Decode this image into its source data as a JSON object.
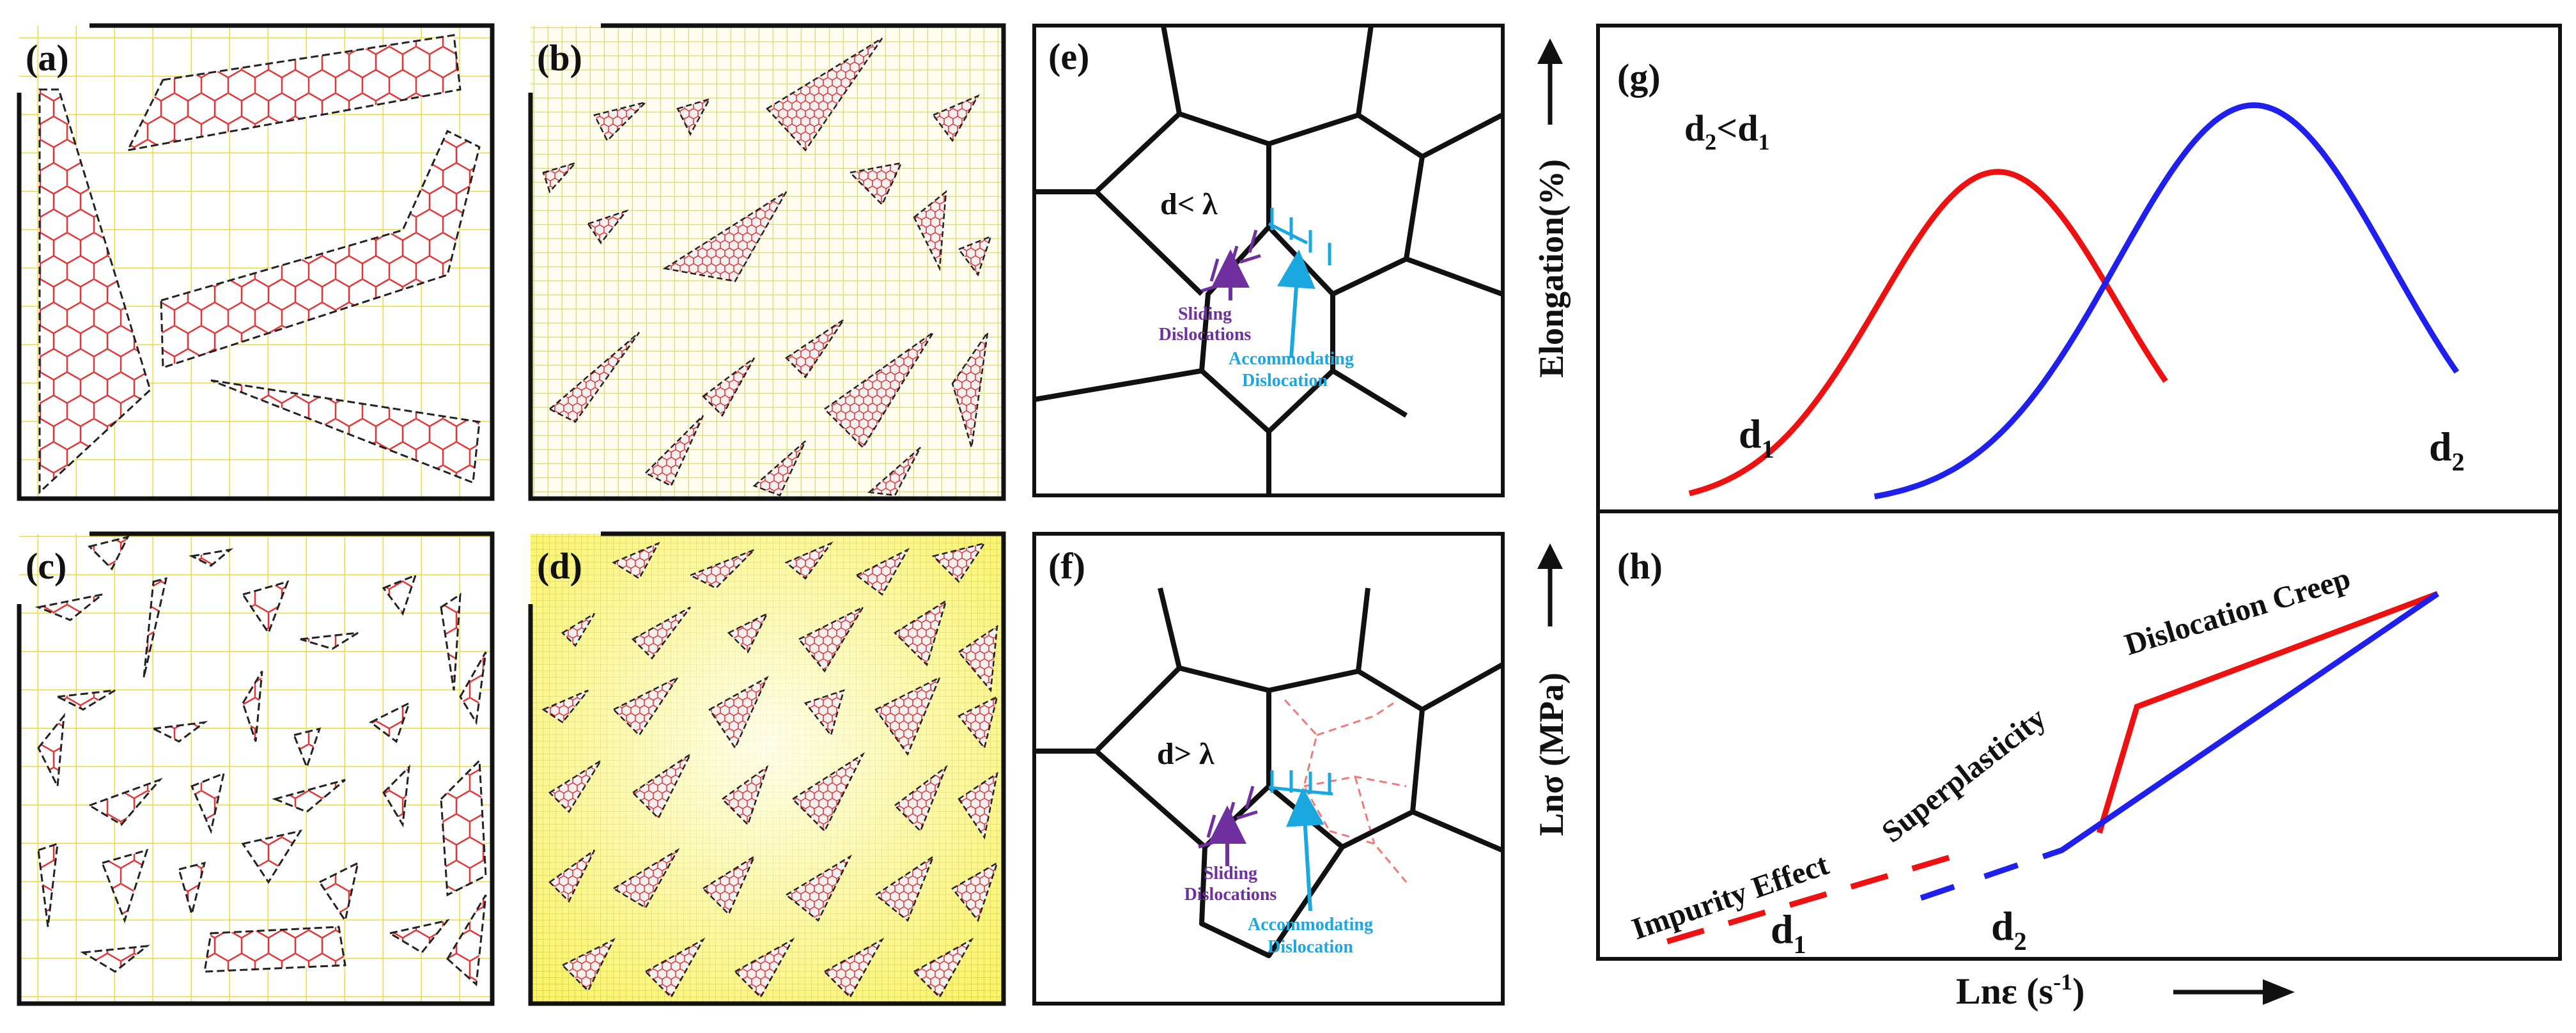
{
  "panels": {
    "a": {
      "label": "(a)"
    },
    "b": {
      "label": "(b)"
    },
    "c": {
      "label": "(c)"
    },
    "d": {
      "label": "(d)"
    },
    "e": {
      "label": "(e)",
      "condition": "d< λ",
      "sliding_label_1": "Sliding",
      "sliding_label_2": "Dislocations",
      "accommodating_label_1": "Accommodating",
      "accommodating_label_2": "Dislocation"
    },
    "f": {
      "label": "(f)",
      "condition": "d> λ",
      "sliding_label_1": "Sliding",
      "sliding_label_2": "Dislocations",
      "accommodating_label_1": "Accommodating",
      "accommodating_label_2": "Dislocation"
    },
    "g": {
      "label": "(g)",
      "relation_left": "d",
      "relation_left_sub": "2",
      "relation_mid": "<d",
      "relation_right_sub": "1",
      "y_axis_label": "Elongation(%)",
      "curve1_label": "d",
      "curve1_sub": "1",
      "curve2_label": "d",
      "curve2_sub": "2"
    },
    "h": {
      "label": "(h)",
      "y_axis_label": "Lnσ (MPa)",
      "x_axis_label": "Lnε (s",
      "x_axis_sup": "-1",
      "x_axis_close": ")",
      "region_impurity": "Impurity Effect",
      "region_superplasticity": "Superplasticity",
      "region_creep": "Dislocation Creep",
      "line1_label": "d",
      "line1_sub": "1",
      "line2_label": "d",
      "line2_sub": "2"
    }
  },
  "colors": {
    "d1": "#ee1111",
    "d2": "#1f1fee",
    "sliding": "#7030a0",
    "accommodating": "#1ba7e0",
    "grid": "#f5e400",
    "flake": "#e33333"
  },
  "chart_data": [
    {
      "type": "line",
      "title": "(g)",
      "xlabel": "",
      "ylabel": "Elongation(%)",
      "series": [
        {
          "name": "d1",
          "color": "#ee1111",
          "peak_x": 0.41,
          "peak_y": 0.7,
          "width": 0.135
        },
        {
          "name": "d2",
          "color": "#1f1fee",
          "peak_x": 0.7,
          "peak_y": 0.84,
          "width": 0.155
        }
      ],
      "ylim": [
        0,
        1
      ],
      "xlim": [
        0,
        1
      ]
    },
    {
      "type": "line",
      "title": "(h)",
      "xlabel": "Lnε (s-1)",
      "ylabel": "Lnσ (MPa)",
      "series": [
        {
          "name": "d1",
          "color": "#ee1111",
          "x": [
            0.06,
            0.48,
            0.56,
            0.88
          ],
          "y": [
            0.04,
            0.31,
            0.6,
            0.84
          ],
          "dashed_until_x": 0.38
        },
        {
          "name": "d2",
          "color": "#1f1fee",
          "x": [
            0.33,
            0.48,
            0.88
          ],
          "y": [
            0.14,
            0.25,
            0.84
          ],
          "dashed_until_x": 0.46
        }
      ],
      "annotations": [
        "Impurity Effect",
        "Superplasticity",
        "Dislocation Creep"
      ],
      "ylim": [
        0,
        1
      ],
      "xlim": [
        0,
        1
      ]
    }
  ]
}
